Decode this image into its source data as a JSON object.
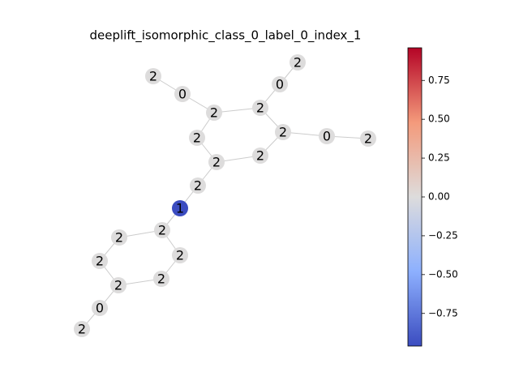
{
  "chart_data": {
    "type": "graph",
    "title": "deeplift_isomorphic_class_0_label_0_index_1",
    "colormap": "coolwarm",
    "nodes": [
      {
        "label": "2",
        "value": 0
      },
      {
        "label": "0",
        "value": 0
      },
      {
        "label": "2",
        "value": 0
      },
      {
        "label": "2",
        "value": 0
      },
      {
        "label": "0",
        "value": 0
      },
      {
        "label": "2",
        "value": 0
      },
      {
        "label": "2",
        "value": 0
      },
      {
        "label": "0",
        "value": 0
      },
      {
        "label": "2",
        "value": 0
      },
      {
        "label": "2",
        "value": 0
      },
      {
        "label": "2",
        "value": 0
      },
      {
        "label": "2",
        "value": 0
      },
      {
        "label": "2",
        "value": 0
      },
      {
        "label": "1",
        "value": -0.96
      },
      {
        "label": "2",
        "value": 0
      },
      {
        "label": "2",
        "value": 0
      },
      {
        "label": "2",
        "value": 0
      },
      {
        "label": "2",
        "value": 0
      },
      {
        "label": "2",
        "value": 0
      },
      {
        "label": "2",
        "value": 0
      },
      {
        "label": "0",
        "value": 0
      },
      {
        "label": "2",
        "value": 0
      }
    ],
    "ylim": [
      -0.96,
      0.96
    ],
    "yticks": [
      {
        "value": -0.75,
        "label": "−0.75"
      },
      {
        "value": -0.5,
        "label": "−0.50"
      },
      {
        "value": -0.25,
        "label": "−0.25"
      },
      {
        "value": 0,
        "label": "0.00"
      },
      0.25,
      {
        "value": 0.5,
        "label": "0.50"
      },
      0.75
    ]
  }
}
